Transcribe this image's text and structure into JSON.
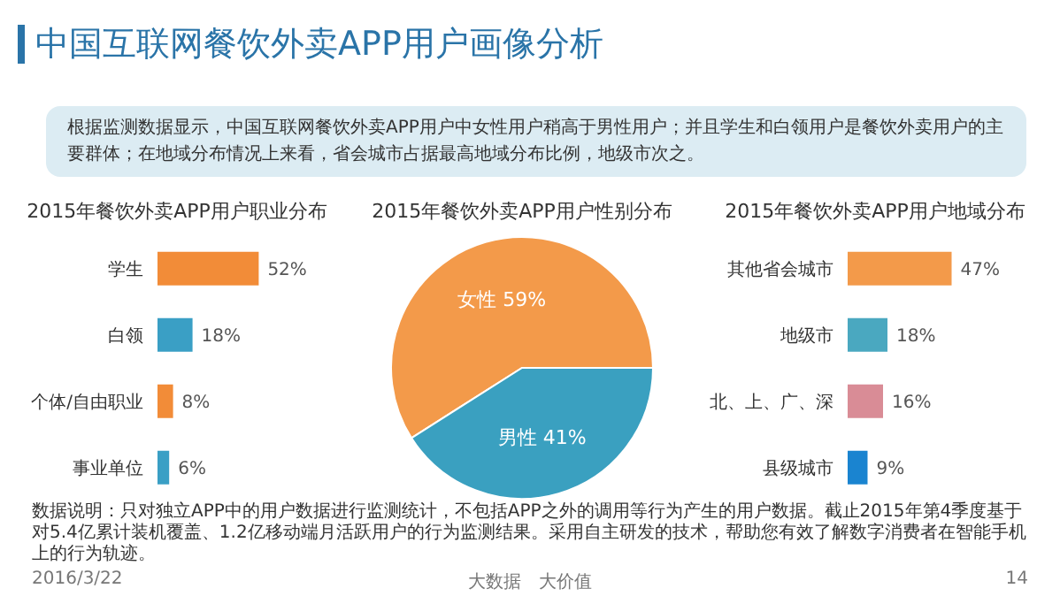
{
  "chart_data": [
    {
      "type": "other",
      "title": "中国互联网餐饮外卖APP用户画像分析",
      "annotations": [
        "根据监测数据显示，中国互联网餐饮外卖APP用户中女性用户稍高于男性用户；并且学生和白领用户是餐饮外卖用户的主要群体；在地域分布情况上来看，省会城市占据最高地域分布比例，地级市次之。",
        "数据说明：只对独立APP中的用户数据进行监测统计，不包括APP之外的调用等行为产生的用户数据。截止2015年第4季度基于对5.4亿累计装机覆盖、1.2亿移动端月活跃用户的行为监测结果。采用自主研发的技术，帮助您有效了解数字消费者在智能手机上的行为轨迹。",
        "2016/3/22",
        "大数据　大价值",
        "14"
      ]
    },
    {
      "type": "bar",
      "orientation": "horizontal",
      "title": "2015年餐饮外卖APP用户职业分布",
      "categories": [
        "学生",
        "白领",
        "个体/自由职业",
        "事业单位"
      ],
      "values": [
        52,
        18,
        8,
        6
      ],
      "colors": [
        "#f28c38",
        "#3a9fc5",
        "#f28c38",
        "#3a9fc5"
      ],
      "value_labels": [
        "52%",
        "18%",
        "8%",
        "6%"
      ],
      "tick_labels": "y"
    },
    {
      "type": "pie",
      "title": "2015年餐饮外卖APP用户性别分布",
      "categories": [
        "女性",
        "男性"
      ],
      "values": [
        59,
        41
      ],
      "colors": [
        "#f39a4a",
        "#3aa0c0"
      ],
      "value_labels": [
        "59%",
        "41%"
      ]
    },
    {
      "type": "bar",
      "orientation": "horizontal",
      "tick_labels": "y",
      "title": "2015年餐饮外卖APP用户地域分布",
      "categories": [
        "其他省会城市",
        "地级市",
        "北、上、广、深",
        "县级城市"
      ],
      "values": [
        47,
        18,
        16,
        9
      ],
      "colors": [
        "#f39a4a",
        "#4aa8c0",
        "#d98c96",
        "#1a84d0"
      ],
      "value_labels": [
        "47%",
        "18%",
        "16%",
        "9%"
      ]
    }
  ]
}
